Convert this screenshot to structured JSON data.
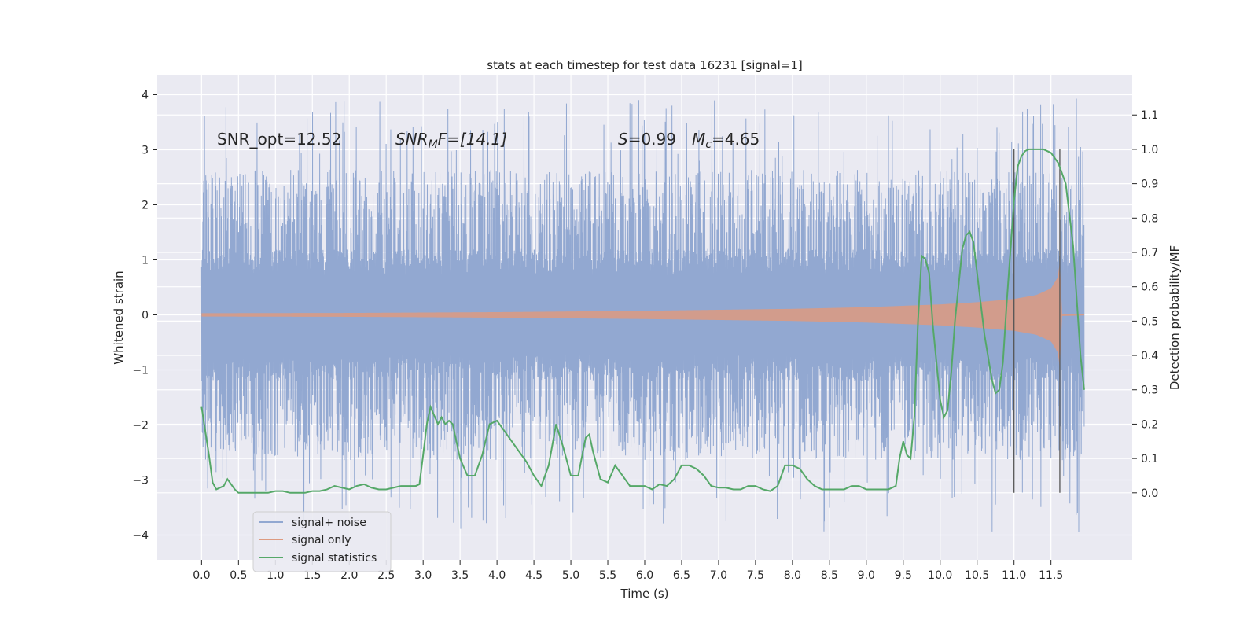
{
  "chart_data": {
    "type": "line",
    "title": "stats at each timestep for test data 16231 [signal=1]",
    "xlabel": "Time (s)",
    "ylabel_left": "Whitened strain",
    "ylabel_right": "Detection probability/MF",
    "xlim": [
      -0.6,
      12.6
    ],
    "ylim_left": [
      -4.45,
      4.35
    ],
    "ylim_right": [
      -0.195,
      1.215
    ],
    "x_ticks": [
      0.0,
      0.5,
      1.0,
      1.5,
      2.0,
      2.5,
      3.0,
      3.5,
      4.0,
      4.5,
      5.0,
      5.5,
      6.0,
      6.5,
      7.0,
      7.5,
      8.0,
      8.5,
      9.0,
      9.5,
      10.0,
      10.5,
      11.0,
      11.5
    ],
    "x_tick_labels": [
      "0.0",
      "0.5",
      "1.0",
      "1.5",
      "2.0",
      "2.5",
      "3.0",
      "3.5",
      "4.0",
      "4.5",
      "5.0",
      "5.5",
      "6.0",
      "6.5",
      "7.0",
      "7.5",
      "8.0",
      "8.5",
      "9.0",
      "9.5",
      "10.0",
      "10.5",
      "11.0",
      "11.5"
    ],
    "y_left_ticks": [
      -4,
      -3,
      -2,
      -1,
      0,
      1,
      2,
      3,
      4
    ],
    "y_left_tick_labels": [
      "−4",
      "−3",
      "−2",
      "−1",
      "0",
      "1",
      "2",
      "3",
      "4"
    ],
    "y_right_ticks": [
      0.0,
      0.1,
      0.2,
      0.3,
      0.4,
      0.5,
      0.6,
      0.7,
      0.8,
      0.9,
      1.0,
      1.1
    ],
    "y_right_tick_labels": [
      "0.0",
      "0.1",
      "0.2",
      "0.3",
      "0.4",
      "0.5",
      "0.6",
      "0.7",
      "0.8",
      "0.9",
      "1.0",
      "1.1"
    ],
    "annotations": {
      "snr_opt": "SNR_opt=12.52",
      "snr_mf": "SNR_MF=[14.1]",
      "snr_mf_pre": "SNR",
      "snr_mf_sub": "M",
      "snr_mf_post": "F=[14.1]",
      "stat": "S=0.99",
      "stat_sym": "S",
      "stat_val": "=0.99",
      "mchirp": "M_c=4.65",
      "mchirp_sym": "M",
      "mchirp_sub": "c",
      "mchirp_val": "=4.65"
    },
    "vlines_x": [
      11.0,
      11.62
    ],
    "series": [
      {
        "name": "signal+ noise",
        "axis": "left",
        "color": "#92a8d1",
        "note": "whitened strain noise, |value| mostly within ±2.5, occasional spikes to ±3.9, t = 0 to 11.95 s",
        "envelope_core": 1.2,
        "envelope_typical": 2.4,
        "peak_max": 3.95,
        "peak_min": -4.05
      },
      {
        "name": "signal only",
        "axis": "left",
        "color": "#dd9a80",
        "envelope": {
          "t": [
            0.0,
            2.0,
            4.0,
            6.0,
            8.0,
            9.0,
            10.0,
            10.5,
            11.0,
            11.3,
            11.5,
            11.6,
            11.62,
            11.65,
            11.95
          ],
          "amp": [
            0.03,
            0.035,
            0.05,
            0.075,
            0.11,
            0.14,
            0.19,
            0.23,
            0.29,
            0.36,
            0.48,
            0.7,
            1.0,
            0.02,
            0.01
          ]
        }
      },
      {
        "name": "signal statistics",
        "axis": "right",
        "color": "#55a868",
        "x": [
          0.0,
          0.1,
          0.15,
          0.2,
          0.3,
          0.35,
          0.45,
          0.5,
          0.6,
          0.7,
          0.8,
          0.9,
          1.0,
          1.1,
          1.2,
          1.3,
          1.4,
          1.5,
          1.6,
          1.7,
          1.8,
          1.9,
          2.0,
          2.1,
          2.2,
          2.3,
          2.4,
          2.5,
          2.6,
          2.7,
          2.8,
          2.9,
          2.95,
          3.0,
          3.05,
          3.1,
          3.2,
          3.25,
          3.3,
          3.35,
          3.4,
          3.5,
          3.6,
          3.7,
          3.8,
          3.9,
          4.0,
          4.1,
          4.2,
          4.3,
          4.4,
          4.5,
          4.6,
          4.7,
          4.8,
          4.9,
          5.0,
          5.1,
          5.2,
          5.25,
          5.3,
          5.4,
          5.5,
          5.6,
          5.7,
          5.8,
          5.9,
          6.0,
          6.1,
          6.2,
          6.3,
          6.4,
          6.5,
          6.6,
          6.7,
          6.8,
          6.9,
          7.0,
          7.1,
          7.2,
          7.3,
          7.4,
          7.5,
          7.6,
          7.7,
          7.8,
          7.9,
          8.0,
          8.1,
          8.2,
          8.3,
          8.4,
          8.5,
          8.6,
          8.7,
          8.8,
          8.9,
          9.0,
          9.1,
          9.2,
          9.3,
          9.4,
          9.45,
          9.5,
          9.55,
          9.6,
          9.65,
          9.7,
          9.75,
          9.8,
          9.85,
          9.9,
          10.0,
          10.05,
          10.1,
          10.15,
          10.2,
          10.3,
          10.35,
          10.4,
          10.45,
          10.5,
          10.6,
          10.7,
          10.75,
          10.8,
          10.85,
          10.9,
          11.0,
          11.05,
          11.1,
          11.15,
          11.2,
          11.3,
          11.4,
          11.5,
          11.6,
          11.7,
          11.8,
          11.9,
          11.95
        ],
        "y": [
          0.25,
          0.11,
          0.03,
          0.01,
          0.02,
          0.04,
          0.01,
          0.0,
          0.0,
          0.0,
          0.0,
          0.0,
          0.005,
          0.005,
          0.0,
          0.0,
          0.0,
          0.005,
          0.005,
          0.01,
          0.02,
          0.015,
          0.01,
          0.02,
          0.025,
          0.015,
          0.01,
          0.01,
          0.015,
          0.02,
          0.02,
          0.02,
          0.025,
          0.11,
          0.2,
          0.25,
          0.2,
          0.22,
          0.2,
          0.21,
          0.2,
          0.1,
          0.05,
          0.05,
          0.11,
          0.2,
          0.21,
          0.18,
          0.15,
          0.12,
          0.09,
          0.05,
          0.02,
          0.08,
          0.2,
          0.13,
          0.05,
          0.05,
          0.16,
          0.17,
          0.12,
          0.04,
          0.03,
          0.08,
          0.05,
          0.02,
          0.02,
          0.02,
          0.01,
          0.025,
          0.02,
          0.04,
          0.08,
          0.08,
          0.07,
          0.05,
          0.02,
          0.015,
          0.015,
          0.01,
          0.01,
          0.02,
          0.02,
          0.01,
          0.005,
          0.02,
          0.08,
          0.08,
          0.07,
          0.04,
          0.02,
          0.01,
          0.01,
          0.01,
          0.01,
          0.02,
          0.02,
          0.01,
          0.01,
          0.01,
          0.01,
          0.02,
          0.1,
          0.15,
          0.11,
          0.1,
          0.22,
          0.5,
          0.69,
          0.68,
          0.64,
          0.49,
          0.27,
          0.22,
          0.24,
          0.35,
          0.5,
          0.71,
          0.75,
          0.76,
          0.73,
          0.64,
          0.46,
          0.33,
          0.29,
          0.3,
          0.38,
          0.55,
          0.85,
          0.95,
          0.98,
          0.995,
          1.0,
          1.0,
          1.0,
          0.99,
          0.96,
          0.9,
          0.72,
          0.4,
          0.3
        ]
      }
    ],
    "legend": {
      "location": "lower-left",
      "entries": [
        "signal+ noise",
        "signal only",
        "signal statistics"
      ]
    }
  }
}
